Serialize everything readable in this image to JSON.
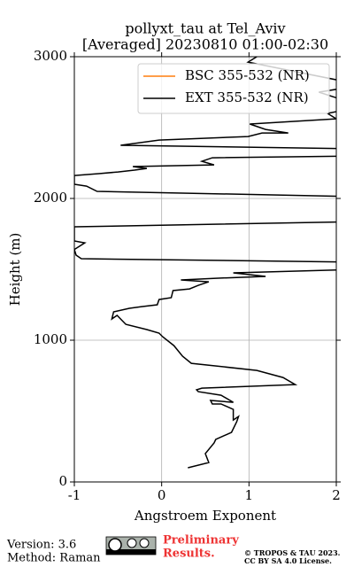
{
  "chart_data": {
    "type": "line",
    "title": "pollyxt_tau at Tel_Aviv",
    "subtitle": "[Averaged] 20230810 01:00-02:30",
    "xlabel": "Angstroem Exponent",
    "ylabel": "Height (m)",
    "xlim": [
      -1,
      2
    ],
    "ylim": [
      0,
      3000
    ],
    "xticks": [
      -1,
      0,
      1,
      2
    ],
    "yticks": [
      0,
      1000,
      2000,
      3000
    ],
    "grid": true,
    "legend": "upper right",
    "series": [
      {
        "name": "BSC 355-532 (NR)",
        "color": "#ff7f0e",
        "x": [],
        "y": []
      },
      {
        "name": "EXT 355-532 (NR)",
        "color": "#000000",
        "x": [
          0.3,
          0.54,
          0.5,
          0.6,
          0.62,
          0.8,
          0.86,
          0.88,
          0.82,
          0.82,
          0.68,
          0.58,
          0.56,
          0.82,
          0.68,
          0.42,
          0.4,
          0.46,
          1.53,
          1.39,
          1.09,
          0.34,
          0.24,
          0.14,
          0.01,
          -0.03,
          -0.17,
          -0.41,
          -0.51,
          -0.57,
          -0.55,
          -0.37,
          -0.23,
          -0.05,
          -0.03,
          0.11,
          0.13,
          0.32,
          0.42,
          0.54,
          0.22,
          0.62,
          1.19,
          0.82,
          2.3,
          2.3,
          -0.92,
          -0.98,
          -1.0,
          -0.88,
          -1.0,
          -1.0,
          2.3,
          2.3,
          -0.74,
          -0.86,
          -1.0,
          -1.0,
          -0.72,
          -0.5,
          -0.31,
          -0.17,
          -0.33,
          0.6,
          0.46,
          0.58,
          2.3,
          2.3,
          -0.47,
          -0.03,
          0.99,
          1.15,
          1.45,
          1.19,
          1.01,
          2.0,
          1.9,
          2.3,
          1.8,
          2.3,
          0.99,
          1.09
        ],
        "y": [
          100,
          137,
          200,
          275,
          300,
          350,
          425,
          462,
          437,
          512,
          550,
          550,
          575,
          562,
          612,
          637,
          650,
          662,
          687,
          737,
          787,
          837,
          887,
          962,
          1025,
          1050,
          1075,
          1112,
          1175,
          1150,
          1200,
          1225,
          1237,
          1250,
          1287,
          1300,
          1350,
          1362,
          1387,
          1412,
          1425,
          1437,
          1450,
          1475,
          1500,
          1550,
          1575,
          1600,
          1640,
          1687,
          1700,
          1800,
          1837,
          2012,
          2050,
          2087,
          2100,
          2162,
          2175,
          2187,
          2200,
          2212,
          2225,
          2237,
          2262,
          2287,
          2300,
          2350,
          2375,
          2412,
          2437,
          2462,
          2462,
          2487,
          2525,
          2562,
          2600,
          2650,
          2750,
          2800,
          2962,
          3000
        ]
      }
    ]
  },
  "footer": {
    "version": "Version: 3.6",
    "method": "Method: Raman",
    "preliminary": "Preliminary",
    "results": "Results.",
    "copyright": "© TROPOS & TAU 2023.",
    "license": "CC BY SA 4.0 License."
  }
}
